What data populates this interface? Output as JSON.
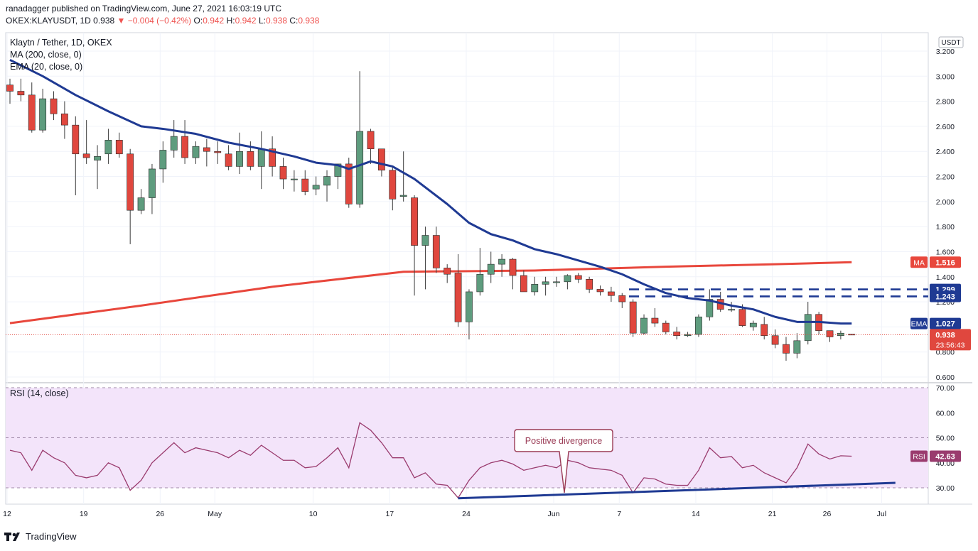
{
  "header": {
    "publisher_line": "ranadagger published on TradingView.com, June 27, 2021 16:03:19 UTC",
    "symbol": "OKEX:KLAYUSDT, 1D",
    "last": "0.938",
    "change": "−0.004 (−0.42%)",
    "o_label": "O:",
    "o": "0.942",
    "h_label": "H:",
    "h": "0.942",
    "l_label": "L:",
    "l": "0.938",
    "c_label": "C:",
    "c": "0.938"
  },
  "legend": {
    "title": "Klaytn / Tether, 1D, OKEX",
    "ma": "MA (200, close, 0)",
    "ema": "EMA (20, close, 0)",
    "rsi": "RSI (14, close)"
  },
  "axis": {
    "currency": "USDT",
    "countdown": "23:56:43"
  },
  "annotation": "Positive divergence",
  "footer": {
    "brand": "TradingView"
  },
  "colors": {
    "up": "#5e9c7e",
    "down": "#e0473e",
    "ma": "#e8473c",
    "ema": "#1f3a93",
    "rsi": "#9a3b6e",
    "rsi_band": "#f3e4fa"
  },
  "chart_data": [
    {
      "type": "candlestick",
      "title": "Klaytn / Tether, 1D, OKEX",
      "ylim": [
        0.6,
        3.2
      ],
      "y_ticks": [
        "3.200",
        "3.000",
        "2.800",
        "2.600",
        "2.400",
        "2.200",
        "2.000",
        "1.800",
        "1.600",
        "1.400",
        "1.200",
        "1.000",
        "0.800",
        "0.600"
      ],
      "x_ticks": [
        {
          "label": "12",
          "index": 0
        },
        {
          "label": "19",
          "index": 7
        },
        {
          "label": "26",
          "index": 14
        },
        {
          "label": "May",
          "index": 19
        },
        {
          "label": "10",
          "index": 28
        },
        {
          "label": "17",
          "index": 35
        },
        {
          "label": "24",
          "index": 42
        },
        {
          "label": "Jun",
          "index": 50
        },
        {
          "label": "7",
          "index": 56
        },
        {
          "label": "14",
          "index": 63
        },
        {
          "label": "21",
          "index": 70
        },
        {
          "label": "26",
          "index": 75
        },
        {
          "label": "Jul",
          "index": 80
        }
      ],
      "candles": [
        [
          2.93,
          2.98,
          2.78,
          2.88
        ],
        [
          2.88,
          2.98,
          2.8,
          2.85
        ],
        [
          2.85,
          2.95,
          2.55,
          2.57
        ],
        [
          2.57,
          2.9,
          2.55,
          2.82
        ],
        [
          2.82,
          2.88,
          2.65,
          2.7
        ],
        [
          2.7,
          2.8,
          2.5,
          2.61
        ],
        [
          2.61,
          2.68,
          2.05,
          2.38
        ],
        [
          2.38,
          2.65,
          2.3,
          2.35
        ],
        [
          2.33,
          2.45,
          2.1,
          2.36
        ],
        [
          2.38,
          2.58,
          2.3,
          2.49
        ],
        [
          2.49,
          2.55,
          2.35,
          2.38
        ],
        [
          2.38,
          2.42,
          1.66,
          1.93
        ],
        [
          1.93,
          2.1,
          1.9,
          2.03
        ],
        [
          2.03,
          2.3,
          1.9,
          2.26
        ],
        [
          2.26,
          2.48,
          2.15,
          2.41
        ],
        [
          2.41,
          2.65,
          2.35,
          2.52
        ],
        [
          2.52,
          2.65,
          2.3,
          2.35
        ],
        [
          2.35,
          2.48,
          2.3,
          2.44
        ],
        [
          2.43,
          2.5,
          2.28,
          2.4
        ],
        [
          2.4,
          2.48,
          2.3,
          2.39
        ],
        [
          2.38,
          2.45,
          2.25,
          2.28
        ],
        [
          2.28,
          2.55,
          2.22,
          2.4
        ],
        [
          2.4,
          2.48,
          2.25,
          2.28
        ],
        [
          2.28,
          2.56,
          2.1,
          2.42
        ],
        [
          2.42,
          2.52,
          2.2,
          2.28
        ],
        [
          2.28,
          2.35,
          2.1,
          2.18
        ],
        [
          2.18,
          2.25,
          2.08,
          2.18
        ],
        [
          2.18,
          2.25,
          2.05,
          2.08
        ],
        [
          2.1,
          2.2,
          2.05,
          2.13
        ],
        [
          2.13,
          2.25,
          2.0,
          2.2
        ],
        [
          2.2,
          2.3,
          2.1,
          2.3
        ],
        [
          2.3,
          2.35,
          1.95,
          1.98
        ],
        [
          1.98,
          3.04,
          1.95,
          2.56
        ],
        [
          2.56,
          2.58,
          2.3,
          2.42
        ],
        [
          2.42,
          2.42,
          2.2,
          2.25
        ],
        [
          2.25,
          2.28,
          1.93,
          2.02
        ],
        [
          2.04,
          2.4,
          2.0,
          2.05
        ],
        [
          2.03,
          2.05,
          1.25,
          1.65
        ],
        [
          1.65,
          1.8,
          1.3,
          1.73
        ],
        [
          1.73,
          1.8,
          1.43,
          1.47
        ],
        [
          1.47,
          1.5,
          1.35,
          1.42
        ],
        [
          1.43,
          1.58,
          1.0,
          1.04
        ],
        [
          1.04,
          1.3,
          0.9,
          1.28
        ],
        [
          1.28,
          1.63,
          1.25,
          1.42
        ],
        [
          1.42,
          1.6,
          1.35,
          1.5
        ],
        [
          1.5,
          1.58,
          1.4,
          1.54
        ],
        [
          1.54,
          1.55,
          1.3,
          1.41
        ],
        [
          1.41,
          1.45,
          1.3,
          1.28
        ],
        [
          1.28,
          1.4,
          1.25,
          1.34
        ],
        [
          1.34,
          1.4,
          1.25,
          1.36
        ],
        [
          1.36,
          1.4,
          1.32,
          1.36
        ],
        [
          1.36,
          1.42,
          1.3,
          1.41
        ],
        [
          1.41,
          1.43,
          1.35,
          1.38
        ],
        [
          1.38,
          1.4,
          1.27,
          1.3
        ],
        [
          1.3,
          1.33,
          1.25,
          1.28
        ],
        [
          1.28,
          1.32,
          1.2,
          1.25
        ],
        [
          1.25,
          1.27,
          1.15,
          1.2
        ],
        [
          1.2,
          1.22,
          0.92,
          0.95
        ],
        [
          0.95,
          1.1,
          0.94,
          1.07
        ],
        [
          1.07,
          1.15,
          1.0,
          1.03
        ],
        [
          1.03,
          1.05,
          0.94,
          0.96
        ],
        [
          0.96,
          1.0,
          0.9,
          0.93
        ],
        [
          0.93,
          0.96,
          0.92,
          0.94
        ],
        [
          0.94,
          1.1,
          0.92,
          1.08
        ],
        [
          1.08,
          1.3,
          1.05,
          1.22
        ],
        [
          1.22,
          1.28,
          1.12,
          1.14
        ],
        [
          1.14,
          1.2,
          1.12,
          1.14
        ],
        [
          1.14,
          1.18,
          1.0,
          1.01
        ],
        [
          1.0,
          1.05,
          0.97,
          1.03
        ],
        [
          1.02,
          1.08,
          0.9,
          0.93
        ],
        [
          0.93,
          0.98,
          0.83,
          0.86
        ],
        [
          0.86,
          0.92,
          0.73,
          0.79
        ],
        [
          0.79,
          0.95,
          0.75,
          0.89
        ],
        [
          0.89,
          1.2,
          0.86,
          1.1
        ],
        [
          1.1,
          1.12,
          0.94,
          0.97
        ],
        [
          0.97,
          0.97,
          0.88,
          0.92
        ],
        [
          0.93,
          0.97,
          0.9,
          0.95
        ],
        [
          0.942,
          0.942,
          0.938,
          0.938
        ]
      ],
      "series": [
        {
          "name": "MA",
          "last_label": "1.516",
          "start": [
            0,
            1.03
          ],
          "end": [
            77,
            1.516
          ],
          "curve": [
            [
              0,
              1.03
            ],
            [
              12,
              1.17
            ],
            [
              24,
              1.32
            ],
            [
              36,
              1.44
            ],
            [
              48,
              1.45
            ],
            [
              60,
              1.48
            ],
            [
              70,
              1.5
            ],
            [
              77,
              1.516
            ]
          ]
        },
        {
          "name": "EMA",
          "last_label": "1.027",
          "values": [
            [
              0,
              3.13
            ],
            [
              3,
              3.0
            ],
            [
              6,
              2.85
            ],
            [
              9,
              2.72
            ],
            [
              12,
              2.6
            ],
            [
              14,
              2.58
            ],
            [
              17,
              2.54
            ],
            [
              20,
              2.47
            ],
            [
              23,
              2.42
            ],
            [
              26,
              2.36
            ],
            [
              28,
              2.31
            ],
            [
              30,
              2.29
            ],
            [
              31,
              2.26
            ],
            [
              33,
              2.32
            ],
            [
              35,
              2.28
            ],
            [
              37,
              2.18
            ],
            [
              40,
              1.98
            ],
            [
              42,
              1.83
            ],
            [
              44,
              1.74
            ],
            [
              46,
              1.69
            ],
            [
              48,
              1.62
            ],
            [
              50,
              1.58
            ],
            [
              52,
              1.53
            ],
            [
              54,
              1.48
            ],
            [
              56,
              1.42
            ],
            [
              58,
              1.34
            ],
            [
              60,
              1.27
            ],
            [
              62,
              1.23
            ],
            [
              64,
              1.21
            ],
            [
              66,
              1.17
            ],
            [
              68,
              1.14
            ],
            [
              70,
              1.08
            ],
            [
              72,
              1.04
            ],
            [
              74,
              1.04
            ],
            [
              76,
              1.027
            ],
            [
              77,
              1.027
            ]
          ]
        }
      ],
      "levels": [
        {
          "label": "1.299",
          "value": 1.299
        },
        {
          "label": "1.243",
          "value": 1.243
        }
      ],
      "price_label": "0.938",
      "last_price": 0.938
    },
    {
      "type": "line",
      "title": "RSI (14, close)",
      "ylim": [
        25,
        70
      ],
      "y_ticks": [
        "70.00",
        "60.00",
        "50.00",
        "40.00",
        "30.00"
      ],
      "band": [
        30,
        70
      ],
      "last_label": "42.63",
      "values": [
        45,
        44,
        37,
        45,
        42,
        40,
        35,
        34,
        35,
        40,
        38,
        29,
        33,
        40,
        44,
        48,
        44,
        46,
        45,
        44,
        42,
        45,
        43,
        47,
        44,
        41,
        41,
        38,
        38.5,
        42,
        46,
        38,
        56,
        53,
        48,
        42,
        42,
        34,
        36,
        31.5,
        31,
        26,
        33,
        38,
        40,
        41,
        39.5,
        37,
        38,
        39,
        38,
        41,
        40,
        38,
        37.5,
        37,
        35,
        28,
        34,
        33.5,
        31.5,
        31,
        31,
        37,
        46,
        42,
        42.5,
        38,
        39,
        36,
        34,
        32,
        38,
        47.5,
        43.5,
        41.5,
        42.8,
        42.63
      ],
      "divergence_line": {
        "from": [
          41,
          25.8
        ],
        "to": [
          81,
          32.0
        ]
      },
      "annotation_point": [
        51.5,
        27.8
      ]
    }
  ]
}
